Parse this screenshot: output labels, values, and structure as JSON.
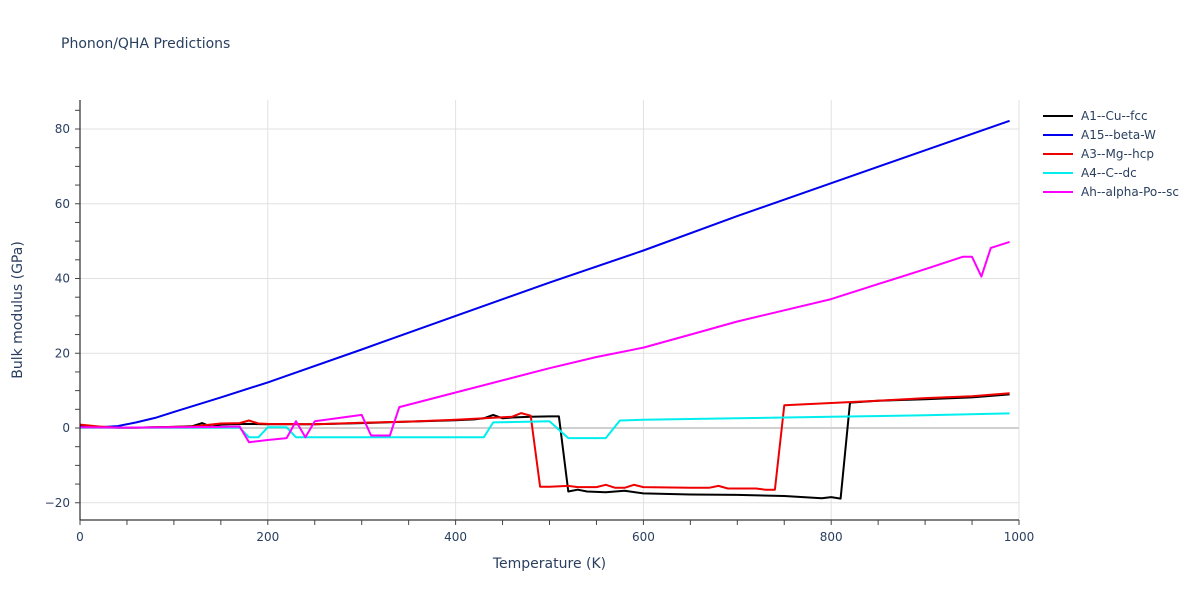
{
  "title": "Phonon/QHA Predictions",
  "chart_data": {
    "type": "line",
    "title": "Phonon/QHA Predictions",
    "xlabel": "Temperature (K)",
    "ylabel": "Bulk modulus (GPa)",
    "xlim": [
      0,
      1000
    ],
    "ylim": [
      -24,
      88
    ],
    "x_ticks": [
      0,
      200,
      400,
      600,
      800,
      1000
    ],
    "y_ticks": [
      -20,
      0,
      20,
      40,
      60,
      80
    ],
    "grid": true,
    "legend_position": "right",
    "series": [
      {
        "name": "A1--Cu--fcc",
        "color": "#000000",
        "x": [
          0,
          20,
          40,
          60,
          80,
          100,
          120,
          130,
          140,
          150,
          160,
          180,
          200,
          250,
          300,
          350,
          400,
          420,
          430,
          440,
          450,
          460,
          480,
          500,
          510,
          520,
          530,
          540,
          560,
          580,
          600,
          650,
          700,
          750,
          790,
          800,
          810,
          820,
          850,
          900,
          950,
          990
        ],
        "y": [
          0.5,
          0.3,
          0.1,
          0.1,
          0.2,
          0.3,
          0.5,
          1.3,
          0.3,
          0.9,
          1.0,
          1.1,
          1.0,
          1.0,
          1.3,
          1.7,
          2.1,
          2.3,
          2.6,
          3.5,
          2.6,
          2.8,
          3.0,
          3.1,
          3.1,
          -17.0,
          -16.5,
          -17.0,
          -17.2,
          -16.8,
          -17.5,
          -17.8,
          -17.9,
          -18.2,
          -18.8,
          -18.5,
          -18.9,
          6.8,
          7.3,
          7.7,
          8.2,
          9.0
        ]
      },
      {
        "name": "A15--beta-W",
        "color": "#0000ee",
        "x": [
          0,
          20,
          40,
          60,
          80,
          100,
          150,
          200,
          300,
          400,
          500,
          600,
          700,
          800,
          900,
          990
        ],
        "y": [
          0.4,
          0.2,
          0.5,
          1.5,
          2.7,
          4.3,
          8.2,
          12.2,
          21.0,
          30.0,
          38.9,
          47.5,
          56.7,
          65.5,
          74.3,
          82.2
        ]
      },
      {
        "name": "A3--Mg--hcp",
        "color": "#ee0000",
        "x": [
          0,
          20,
          40,
          60,
          80,
          100,
          120,
          150,
          170,
          180,
          190,
          200,
          250,
          300,
          350,
          400,
          450,
          460,
          470,
          480,
          490,
          500,
          520,
          530,
          550,
          560,
          570,
          580,
          590,
          600,
          650,
          670,
          680,
          690,
          720,
          730,
          740,
          750,
          800,
          850,
          900,
          950,
          990
        ],
        "y": [
          0.9,
          0.4,
          0.1,
          0.1,
          0.2,
          0.3,
          0.4,
          1.2,
          1.3,
          2.0,
          1.2,
          1.1,
          1.0,
          1.4,
          1.7,
          2.2,
          2.9,
          3.0,
          4.0,
          3.3,
          -15.7,
          -15.7,
          -15.5,
          -15.8,
          -15.8,
          -15.2,
          -16.0,
          -16.0,
          -15.2,
          -15.8,
          -16.0,
          -16.0,
          -15.5,
          -16.2,
          -16.2,
          -16.5,
          -16.5,
          6.1,
          6.7,
          7.3,
          8.0,
          8.5,
          9.3
        ]
      },
      {
        "name": "A4--C--dc",
        "color": "#00eeee",
        "x": [
          0,
          100,
          170,
          180,
          190,
          200,
          220,
          230,
          240,
          300,
          400,
          430,
          440,
          500,
          520,
          560,
          575,
          600,
          700,
          800,
          900,
          990
        ],
        "y": [
          0.1,
          0.1,
          0.1,
          -2.5,
          -2.5,
          0.2,
          0.2,
          -2.5,
          -2.5,
          -2.5,
          -2.5,
          -2.5,
          1.5,
          1.8,
          -2.7,
          -2.7,
          2.0,
          2.2,
          2.6,
          3.0,
          3.4,
          3.9
        ]
      },
      {
        "name": "Ah--alpha-Po--sc",
        "color": "#ff00ff",
        "x": [
          0,
          50,
          100,
          150,
          170,
          180,
          200,
          220,
          230,
          240,
          250,
          300,
          310,
          330,
          340,
          400,
          500,
          550,
          600,
          650,
          700,
          750,
          800,
          850,
          900,
          940,
          950,
          960,
          970,
          990
        ],
        "y": [
          0.2,
          0.1,
          0.2,
          0.3,
          0.4,
          -3.8,
          -3.2,
          -2.7,
          1.8,
          -2.5,
          1.8,
          3.5,
          -2.0,
          -2.0,
          5.6,
          9.5,
          16.0,
          19.0,
          21.5,
          25.0,
          28.5,
          31.5,
          34.5,
          38.5,
          42.5,
          45.8,
          45.8,
          40.5,
          48.2,
          49.8
        ]
      }
    ]
  }
}
